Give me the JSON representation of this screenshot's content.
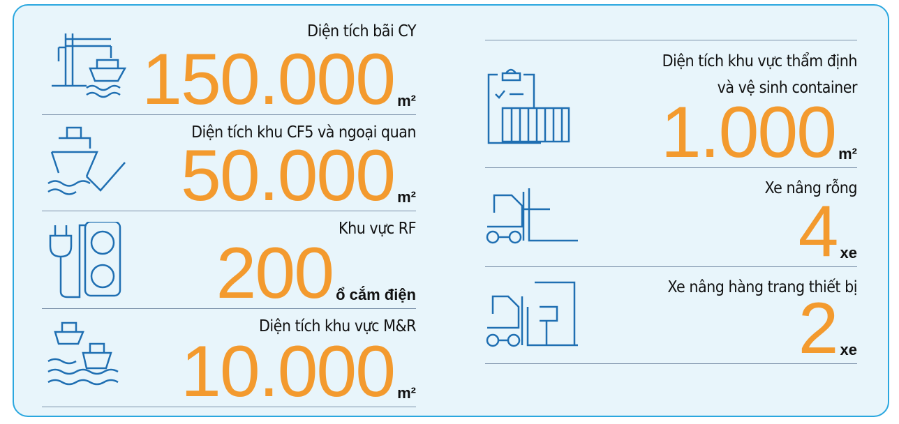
{
  "left": [
    {
      "label": [
        "Diện tích bãi CY"
      ],
      "value": "150.000",
      "unit": "m²"
    },
    {
      "label": [
        "Diện tích khu CF5 và ngoại quan"
      ],
      "value": "50.000",
      "unit": "m²"
    },
    {
      "label": [
        "Khu vực RF"
      ],
      "value": "200",
      "unit": "ổ cắm điện"
    },
    {
      "label": [
        "Diện tích khu vực M&R"
      ],
      "value": "10.000",
      "unit": "m²"
    }
  ],
  "right": [
    {
      "label": [
        "Diện tích khu vực thẩm định",
        "và vệ sinh container"
      ],
      "value": "1.000",
      "unit": "m²"
    },
    {
      "label": [
        "Xe nâng rỗng"
      ],
      "value": "4",
      "unit": "xe"
    },
    {
      "label": [
        "Xe nâng hàng trang thiết bị"
      ],
      "value": "2",
      "unit": "xe"
    }
  ]
}
